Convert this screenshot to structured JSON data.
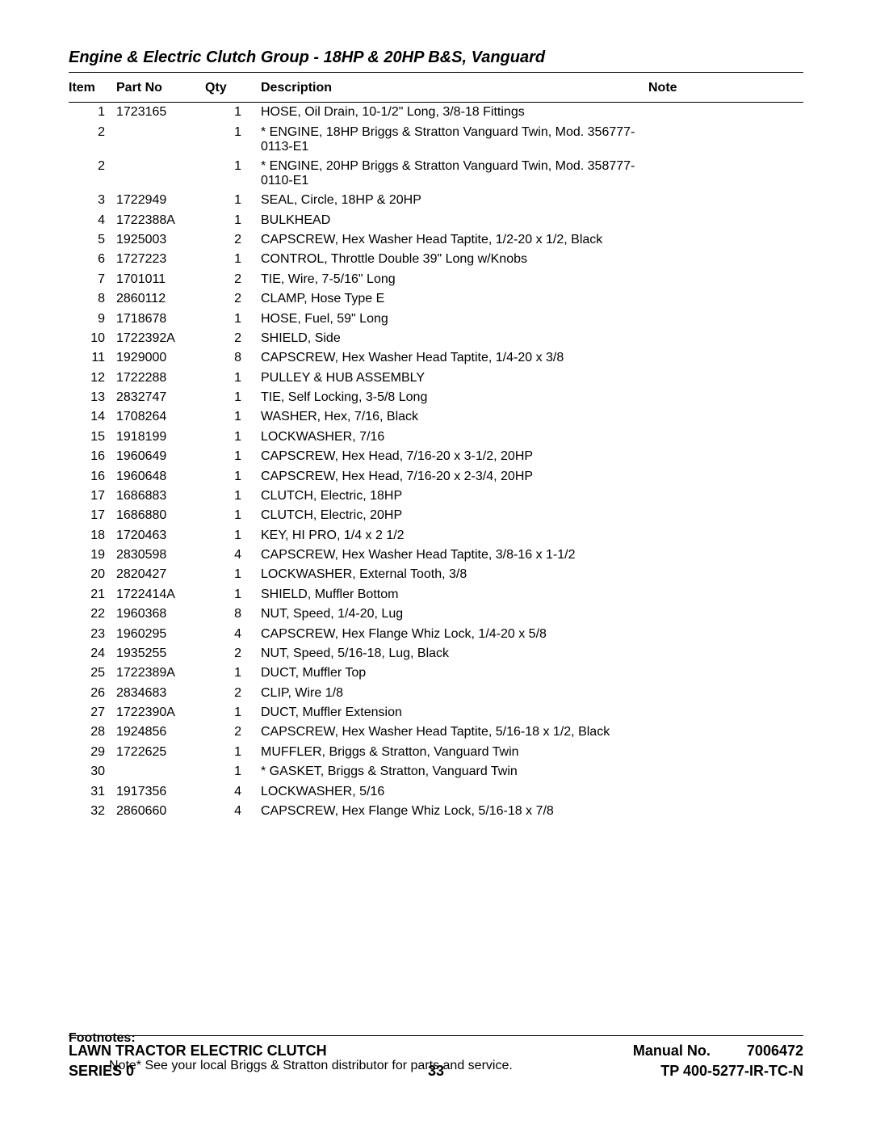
{
  "title": "Engine & Electric Clutch Group - 18HP & 20HP B&S, Vanguard",
  "headers": {
    "item": "Item",
    "part": "Part No",
    "qty": "Qty",
    "desc": "Description",
    "note": "Note"
  },
  "rows": [
    {
      "item": "1",
      "part": "1723165",
      "qty": "1",
      "desc": "HOSE, Oil Drain, 10-1/2\" Long, 3/8-18 Fittings"
    },
    {
      "item": "2",
      "part": "",
      "qty": "1",
      "desc": "* ENGINE, 18HP Briggs & Stratton Vanguard Twin, Mod. 356777-0113-E1"
    },
    {
      "item": "2",
      "part": "",
      "qty": "1",
      "desc": "* ENGINE, 20HP Briggs & Stratton Vanguard Twin, Mod. 358777-0110-E1"
    },
    {
      "item": "3",
      "part": "1722949",
      "qty": "1",
      "desc": "SEAL, Circle, 18HP & 20HP"
    },
    {
      "item": "4",
      "part": "1722388A",
      "qty": "1",
      "desc": "BULKHEAD"
    },
    {
      "item": "5",
      "part": "1925003",
      "qty": "2",
      "desc": "CAPSCREW, Hex Washer Head Taptite, 1/2-20 x 1/2, Black"
    },
    {
      "item": "6",
      "part": "1727223",
      "qty": "1",
      "desc": "CONTROL, Throttle Double 39\" Long w/Knobs"
    },
    {
      "item": "7",
      "part": "1701011",
      "qty": "2",
      "desc": "TIE, Wire, 7-5/16\" Long"
    },
    {
      "item": "8",
      "part": "2860112",
      "qty": "2",
      "desc": "CLAMP, Hose Type E"
    },
    {
      "item": "9",
      "part": "1718678",
      "qty": "1",
      "desc": "HOSE, Fuel, 59\" Long"
    },
    {
      "item": "10",
      "part": "1722392A",
      "qty": "2",
      "desc": "SHIELD, Side"
    },
    {
      "item": "11",
      "part": "1929000",
      "qty": "8",
      "desc": "CAPSCREW, Hex Washer Head Taptite, 1/4-20 x 3/8"
    },
    {
      "item": "12",
      "part": "1722288",
      "qty": "1",
      "desc": "PULLEY & HUB ASSEMBLY"
    },
    {
      "item": "13",
      "part": "2832747",
      "qty": "1",
      "desc": "TIE, Self Locking, 3-5/8 Long"
    },
    {
      "item": "14",
      "part": "1708264",
      "qty": "1",
      "desc": "WASHER, Hex, 7/16, Black"
    },
    {
      "item": "15",
      "part": "1918199",
      "qty": "1",
      "desc": "LOCKWASHER, 7/16"
    },
    {
      "item": "16",
      "part": "1960649",
      "qty": "1",
      "desc": "CAPSCREW, Hex Head, 7/16-20 x 3-1/2, 20HP"
    },
    {
      "item": "16",
      "part": "1960648",
      "qty": "1",
      "desc": "CAPSCREW, Hex Head, 7/16-20 x 2-3/4, 20HP"
    },
    {
      "item": "17",
      "part": "1686883",
      "qty": "1",
      "desc": "CLUTCH, Electric, 18HP"
    },
    {
      "item": "17",
      "part": "1686880",
      "qty": "1",
      "desc": "CLUTCH, Electric, 20HP"
    },
    {
      "item": "18",
      "part": "1720463",
      "qty": "1",
      "desc": "KEY, HI PRO, 1/4 x 2 1/2"
    },
    {
      "item": "19",
      "part": "2830598",
      "qty": "4",
      "desc": "CAPSCREW, Hex Washer Head Taptite, 3/8-16 x 1-1/2"
    },
    {
      "item": "20",
      "part": "2820427",
      "qty": "1",
      "desc": "LOCKWASHER, External Tooth, 3/8"
    },
    {
      "item": "21",
      "part": "1722414A",
      "qty": "1",
      "desc": "SHIELD, Muffler Bottom"
    },
    {
      "item": "22",
      "part": "1960368",
      "qty": "8",
      "desc": "NUT, Speed, 1/4-20, Lug"
    },
    {
      "item": "23",
      "part": "1960295",
      "qty": "4",
      "desc": "CAPSCREW, Hex Flange Whiz Lock, 1/4-20 x 5/8"
    },
    {
      "item": "24",
      "part": "1935255",
      "qty": "2",
      "desc": "NUT, Speed, 5/16-18, Lug, Black"
    },
    {
      "item": "25",
      "part": "1722389A",
      "qty": "1",
      "desc": "DUCT, Muffler Top"
    },
    {
      "item": "26",
      "part": "2834683",
      "qty": "2",
      "desc": "CLIP, Wire 1/8"
    },
    {
      "item": "27",
      "part": "1722390A",
      "qty": "1",
      "desc": "DUCT, Muffler Extension"
    },
    {
      "item": "28",
      "part": "1924856",
      "qty": "2",
      "desc": "CAPSCREW, Hex Washer Head Taptite, 5/16-18 x 1/2, Black"
    },
    {
      "item": "29",
      "part": "1722625",
      "qty": "1",
      "desc": "MUFFLER, Briggs & Stratton, Vanguard Twin"
    },
    {
      "item": "30",
      "part": "",
      "qty": "1",
      "desc": "* GASKET, Briggs & Stratton, Vanguard Twin"
    },
    {
      "item": "31",
      "part": "1917356",
      "qty": "4",
      "desc": "LOCKWASHER, 5/16"
    },
    {
      "item": "32",
      "part": "2860660",
      "qty": "4",
      "desc": "CAPSCREW, Hex Flange Whiz Lock, 5/16-18 x 7/8"
    }
  ],
  "footnotes": {
    "heading": "Footnotes:",
    "text": "Note* See your local Briggs & Stratton distributor for parts and service."
  },
  "footer": {
    "left1": "LAWN TRACTOR ELECTRIC CLUTCH",
    "left2": "SERIES 0",
    "right1a": "Manual No.",
    "right1b": "7006472",
    "right2": "TP 400-5277-IR-TC-N",
    "pagenum": "33"
  }
}
